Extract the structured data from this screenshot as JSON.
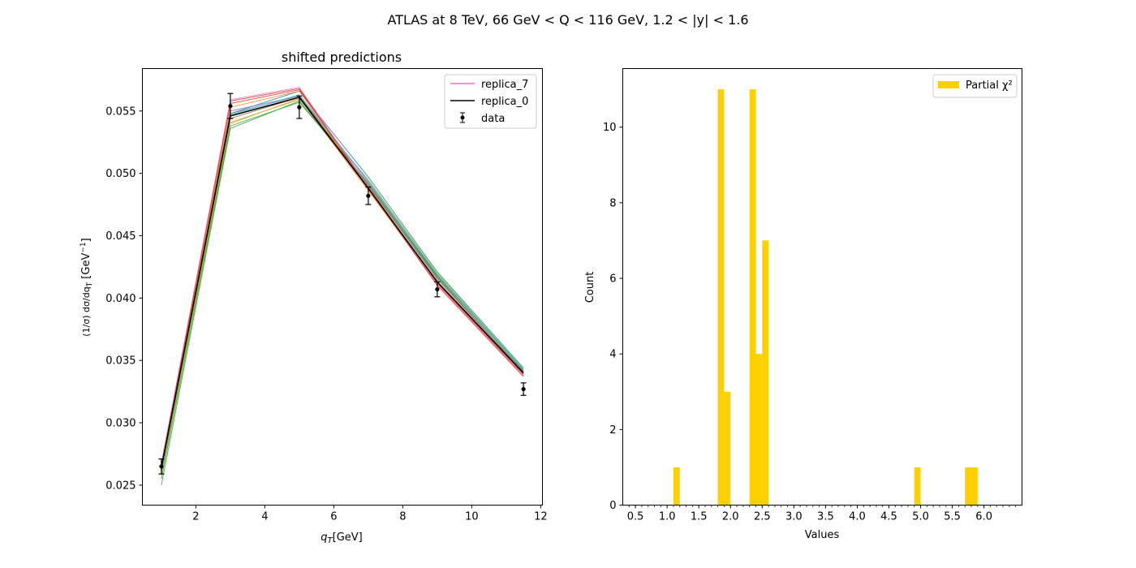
{
  "figure": {
    "suptitle": "ATLAS at 8 TeV, 66 GeV < Q < 116 GeV, 1.2 < |y| < 1.6"
  },
  "chart_data": [
    {
      "type": "line",
      "title": "shifted predictions",
      "xlabel": "q_T[GeV]",
      "ylabel": "(1/σ) dσ/dq_T [GeV⁻¹]",
      "xlim": [
        0.45,
        12.05
      ],
      "ylim": [
        0.0234,
        0.0584
      ],
      "xticks": [
        2,
        4,
        6,
        8,
        10,
        12
      ],
      "yticks": [
        0.025,
        0.03,
        0.035,
        0.04,
        0.045,
        0.05,
        0.055
      ],
      "grid": false,
      "legend": {
        "placement": "top-right",
        "entries": [
          {
            "label": "replica_7",
            "color": "#e377c2",
            "kind": "line"
          },
          {
            "label": "replica_0",
            "color": "#000000",
            "kind": "line"
          },
          {
            "label": "data",
            "color": "#000000",
            "kind": "errorbar"
          }
        ]
      },
      "x": [
        1,
        3,
        5,
        7,
        9,
        11.5
      ],
      "data": {
        "name": "data",
        "y": [
          0.0265,
          0.0554,
          0.0553,
          0.0482,
          0.0407,
          0.0327
        ],
        "yerr": [
          0.0006,
          0.001,
          0.0009,
          0.0007,
          0.0006,
          0.0005
        ]
      },
      "replicas": [
        {
          "color": "#1f77b4",
          "y": [
            0.0262,
            0.0548,
            0.0566,
            0.0497,
            0.0421,
            0.0344
          ]
        },
        {
          "color": "#ff7f0e",
          "y": [
            0.0258,
            0.054,
            0.056,
            0.0486,
            0.0412,
            0.0338
          ]
        },
        {
          "color": "#2ca02c",
          "y": [
            0.025,
            0.0536,
            0.0558,
            0.049,
            0.0416,
            0.0341
          ]
        },
        {
          "color": "#d62728",
          "y": [
            0.0266,
            0.0556,
            0.0567,
            0.0489,
            0.0412,
            0.0339
          ]
        },
        {
          "color": "#9467bd",
          "y": [
            0.0265,
            0.055,
            0.0562,
            0.0493,
            0.0418,
            0.0342
          ]
        },
        {
          "color": "#8c564b",
          "y": [
            0.026,
            0.0544,
            0.0561,
            0.0491,
            0.0417,
            0.034
          ]
        },
        {
          "color": "#7f7f7f",
          "y": [
            0.0263,
            0.0548,
            0.0562,
            0.049,
            0.0415,
            0.0341
          ]
        },
        {
          "color": "#bcbd22",
          "y": [
            0.0259,
            0.0541,
            0.0559,
            0.0495,
            0.042,
            0.0343
          ]
        },
        {
          "color": "#17becf",
          "y": [
            0.0261,
            0.0547,
            0.0563,
            0.0494,
            0.0419,
            0.0343
          ]
        },
        {
          "color": "#ff7f0e",
          "y": [
            0.0264,
            0.0553,
            0.0566,
            0.0487,
            0.0411,
            0.0338
          ]
        },
        {
          "color": "#2ca02c",
          "y": [
            0.0255,
            0.0538,
            0.0557,
            0.0492,
            0.0418,
            0.0342
          ]
        },
        {
          "color": "#d62728",
          "y": [
            0.0267,
            0.0558,
            0.0568,
            0.0488,
            0.041,
            0.0337
          ]
        },
        {
          "color": "#e377c2",
          "y": [
            0.0268,
            0.0559,
            0.0569,
            0.0489,
            0.0411,
            0.0338
          ]
        },
        {
          "color": "#000000",
          "y": [
            0.0264,
            0.0546,
            0.0561,
            0.0488,
            0.0413,
            0.034
          ]
        }
      ]
    },
    {
      "type": "bar",
      "title": "",
      "xlabel": "Values",
      "ylabel": "Count",
      "xlim": [
        0.3,
        6.6
      ],
      "ylim": [
        0,
        11.55
      ],
      "xticks": [
        0.5,
        1.0,
        1.5,
        2.0,
        2.5,
        3.0,
        3.5,
        4.0,
        4.5,
        5.0,
        5.5,
        6.0
      ],
      "xtick_labels": [
        "0.5",
        "1.0",
        "1.5",
        "2.0",
        "2.5",
        "3.0",
        "3.5",
        "4.0",
        "4.5",
        "5.0",
        "5.5",
        "6.0"
      ],
      "xminor_step": 0.1,
      "yticks": [
        0,
        2,
        4,
        6,
        8,
        10
      ],
      "grid": false,
      "color": "#ffd000",
      "legend": {
        "placement": "top-right",
        "entries": [
          {
            "label": "Partial χ²",
            "color": "#ffd000",
            "kind": "patch"
          }
        ]
      },
      "bin_width": 0.1,
      "bins": [
        {
          "left": 1.1,
          "count": 1
        },
        {
          "left": 1.8,
          "count": 11
        },
        {
          "left": 1.9,
          "count": 3
        },
        {
          "left": 2.3,
          "count": 11
        },
        {
          "left": 2.4,
          "count": 4
        },
        {
          "left": 2.5,
          "count": 7
        },
        {
          "left": 4.9,
          "count": 1
        },
        {
          "left": 5.7,
          "count": 1
        },
        {
          "left": 5.8,
          "count": 1
        }
      ]
    }
  ]
}
